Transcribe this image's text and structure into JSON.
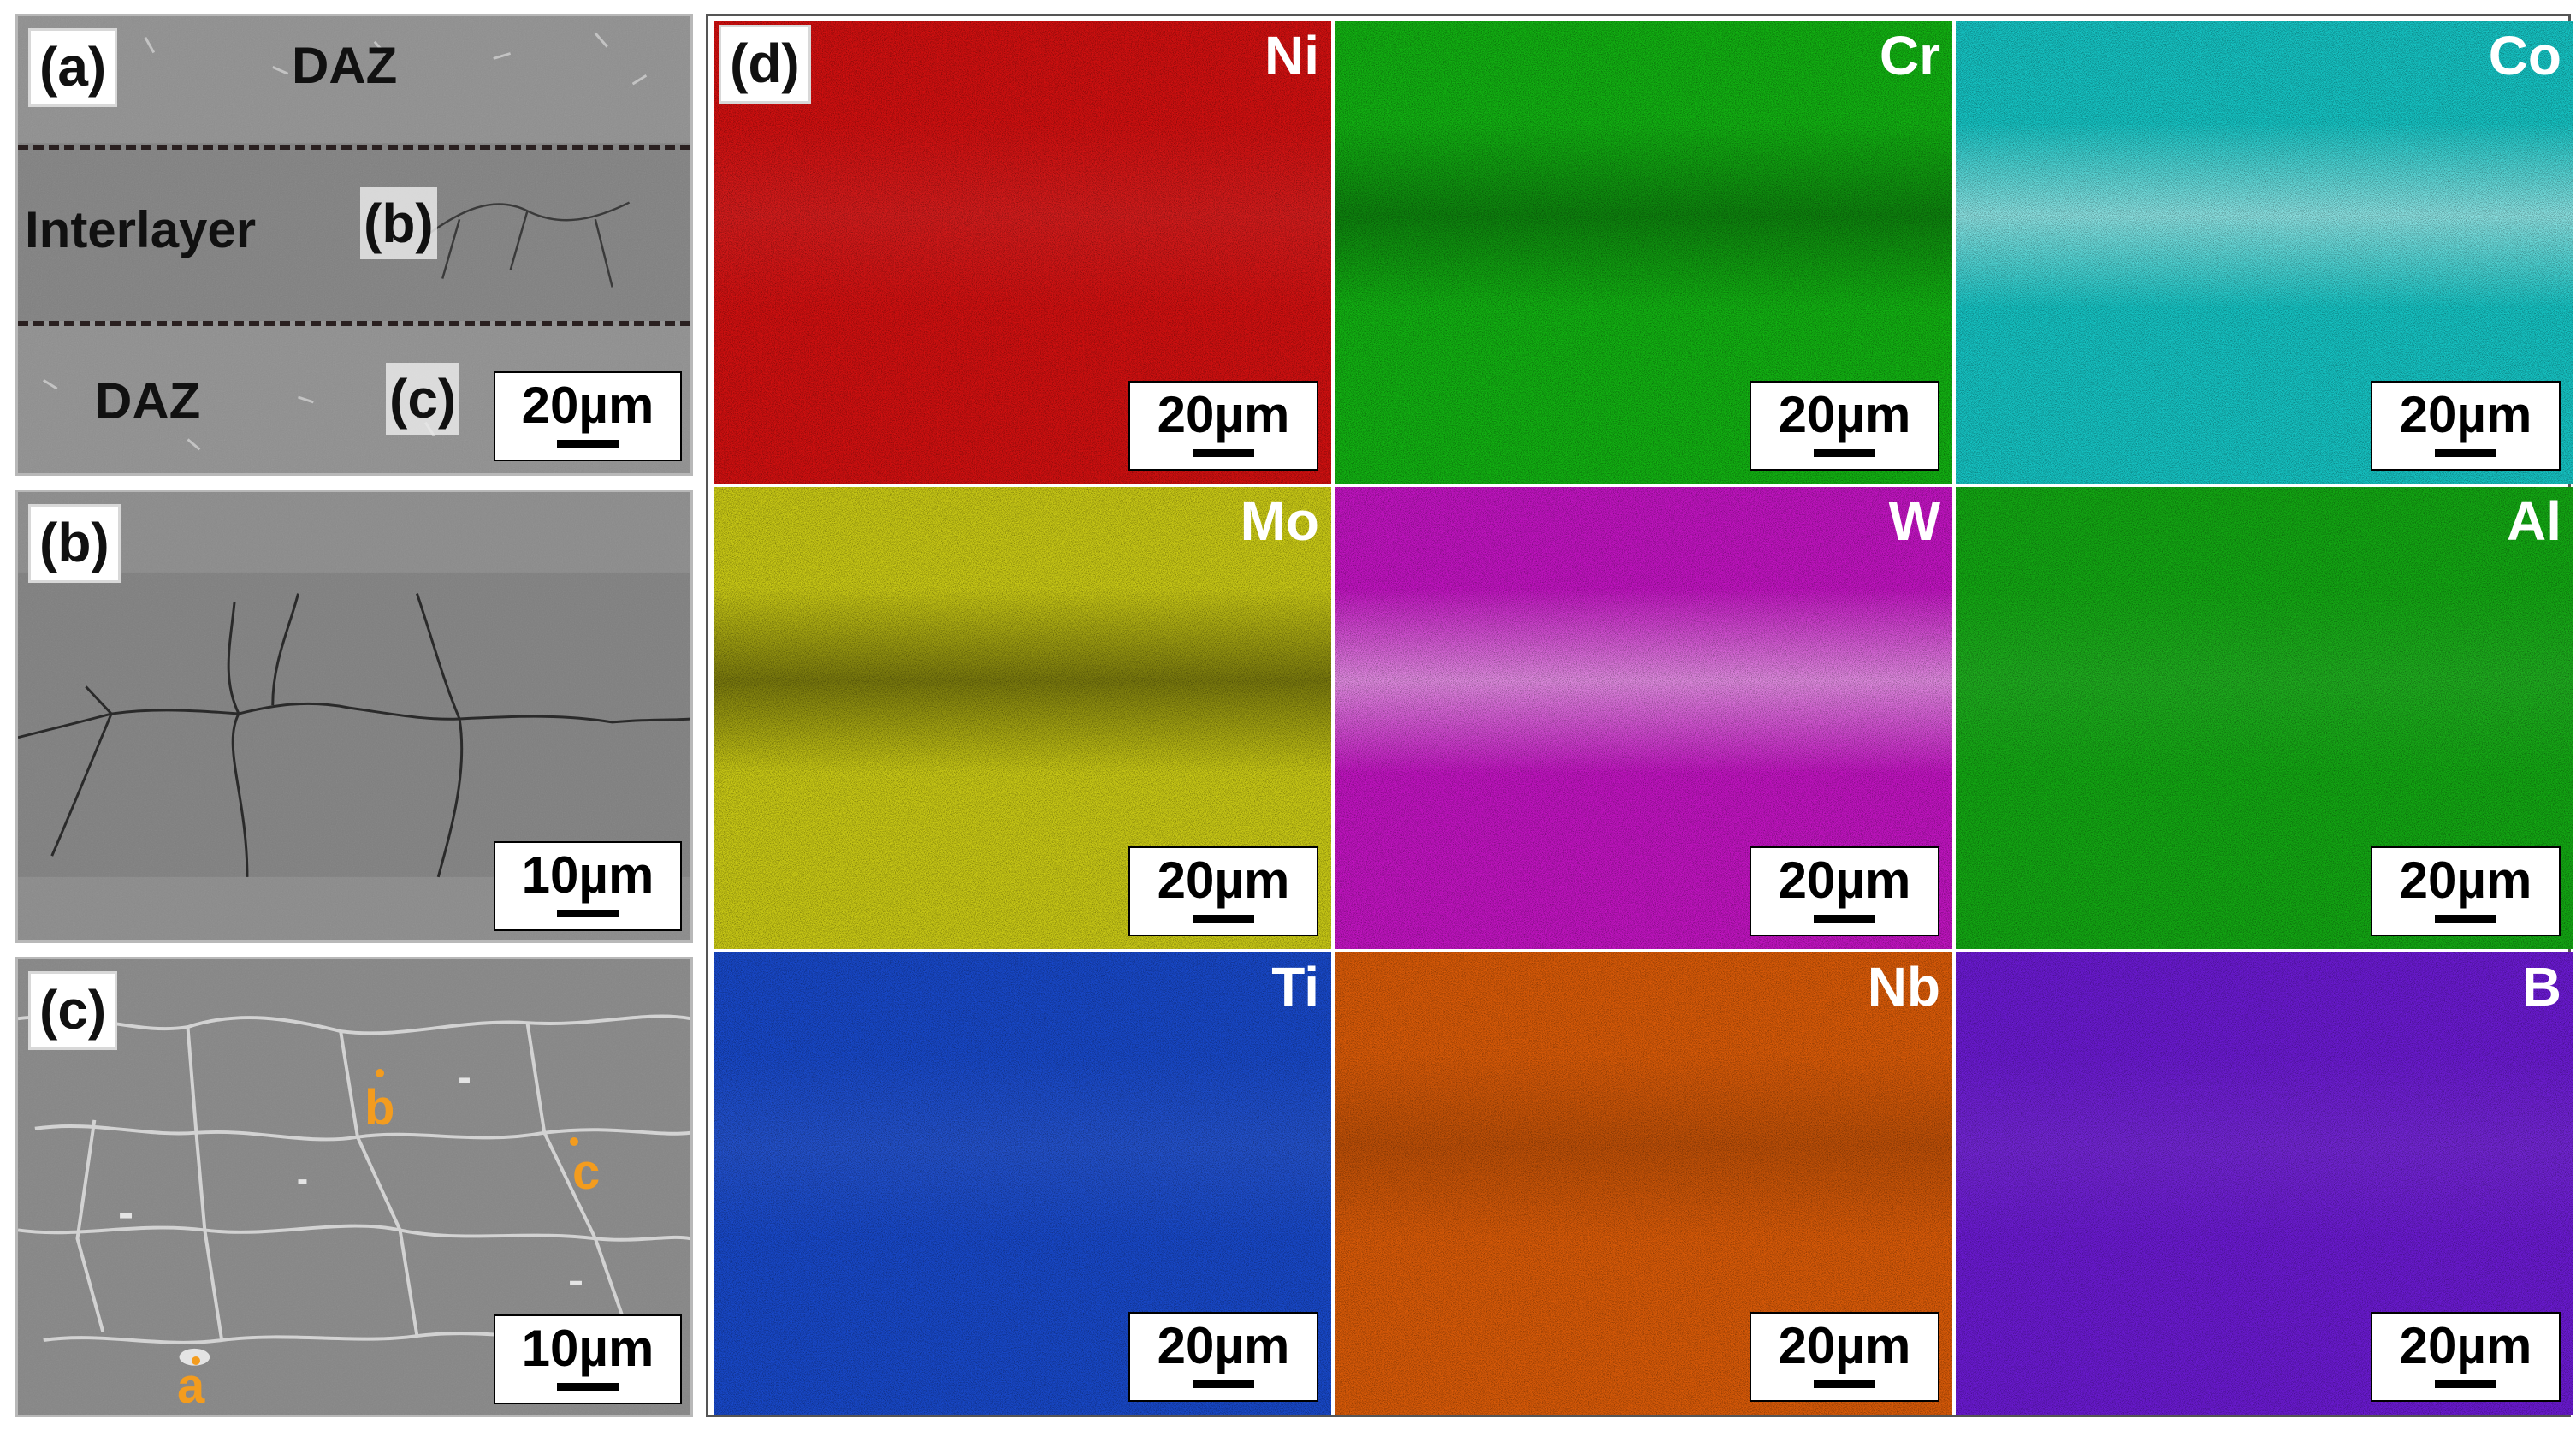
{
  "panels": {
    "a": {
      "label": "(a)",
      "daz_top": "DAZ",
      "interlayer": "Interlayer",
      "inset_b": "(b)",
      "daz_bottom": "DAZ",
      "inset_c": "(c)",
      "scale": "20µm"
    },
    "b": {
      "label": "(b)",
      "scale": "10µm"
    },
    "c": {
      "label": "(c)",
      "scale": "10µm",
      "points": [
        "a",
        "b",
        "c"
      ]
    },
    "d": {
      "label": "(d)"
    }
  },
  "maps": [
    {
      "element": "Ni",
      "color": "#d01010",
      "scale": "20µm"
    },
    {
      "element": "Cr",
      "color": "#12b012",
      "scale": "20µm"
    },
    {
      "element": "Co",
      "color": "#15c2c2",
      "scale": "20µm"
    },
    {
      "element": "Mo",
      "color": "#c8c815",
      "scale": "20µm"
    },
    {
      "element": "W",
      "color": "#c014c0",
      "scale": "20µm"
    },
    {
      "element": "Al",
      "color": "#13a613",
      "scale": "20µm"
    },
    {
      "element": "Ti",
      "color": "#1848c8",
      "scale": "20µm"
    },
    {
      "element": "Nb",
      "color": "#d85a08",
      "scale": "20µm"
    },
    {
      "element": "B",
      "color": "#6a1ad0",
      "scale": "20µm"
    }
  ],
  "colors": {
    "point_marker": "#f39c1e",
    "sem_gray": "#8a8a8a"
  }
}
